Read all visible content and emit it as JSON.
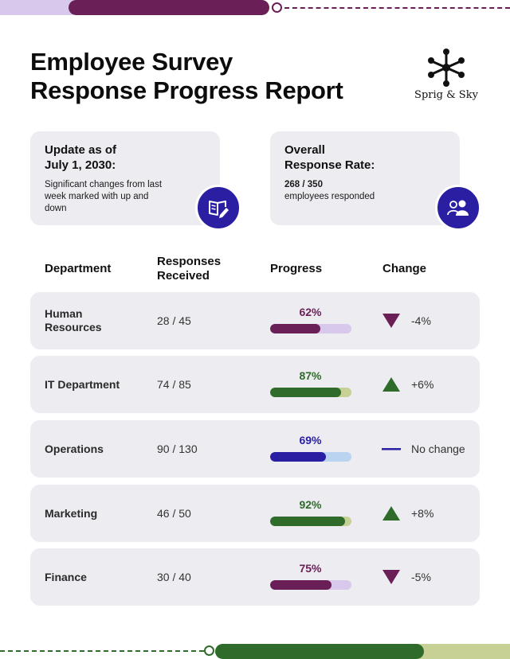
{
  "title": {
    "line1": "Employee Survey",
    "line2": "Response Progress Report"
  },
  "brand": {
    "name": "Sprig & Sky"
  },
  "update_card": {
    "title_line1": "Update as of",
    "title_line2": "July 1, 2030:",
    "body": "Significant changes from last week marked with up and down",
    "icon": "book-pen-icon"
  },
  "rate_card": {
    "title_line1": "Overall",
    "title_line2": "Response Rate:",
    "value": "268 / 350",
    "caption": "employees responded",
    "icon": "people-icon"
  },
  "table": {
    "headers": {
      "department": "Department",
      "responses_line1": "Responses",
      "responses_line2": "Received",
      "progress": "Progress",
      "change": "Change"
    },
    "rows": [
      {
        "department": "Human Resources",
        "responses": "28 / 45",
        "progress_label": "62%",
        "progress": 0.62,
        "change": "-4%",
        "trend": "down",
        "fill_color": "#6a1f56",
        "track_color": "#d7c8ec"
      },
      {
        "department": "IT Department",
        "responses": "74 / 85",
        "progress_label": "87%",
        "progress": 0.87,
        "change": "+6%",
        "trend": "up",
        "fill_color": "#2f6b2a",
        "track_color": "#c7d196"
      },
      {
        "department": "Operations",
        "responses": "90 / 130",
        "progress_label": "69%",
        "progress": 0.69,
        "change": "No change",
        "trend": "none",
        "fill_color": "#2a1fa3",
        "track_color": "#b9d3f0"
      },
      {
        "department": "Marketing",
        "responses": "46 / 50",
        "progress_label": "92%",
        "progress": 0.92,
        "change": "+8%",
        "trend": "up",
        "fill_color": "#2f6b2a",
        "track_color": "#c7d196"
      },
      {
        "department": "Finance",
        "responses": "30 / 40",
        "progress_label": "75%",
        "progress": 0.75,
        "change": "-5%",
        "trend": "down",
        "fill_color": "#6a1f56",
        "track_color": "#d7c8ec"
      }
    ]
  },
  "colors": {
    "plum": "#6a1f56",
    "green": "#2f6b2a",
    "indigo": "#2a1fa3",
    "lavender": "#d7c8ec",
    "olive": "#c7d196",
    "card_bg": "#ececf1"
  }
}
